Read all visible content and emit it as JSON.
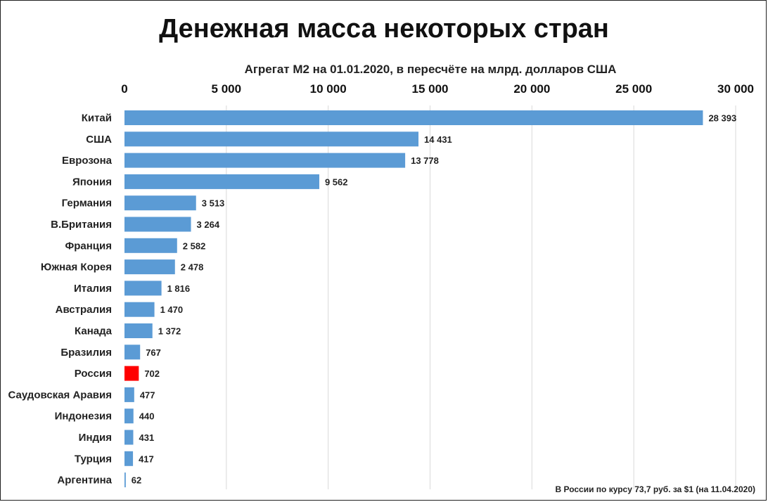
{
  "chart_data": {
    "type": "bar",
    "orientation": "horizontal",
    "title": "Денежная масса некоторых стран",
    "subtitle": "Агрегат М2 на 01.01.2020, в пересчёте на млрд. долларов США",
    "xlabel": "",
    "ylabel": "",
    "xlim": [
      0,
      30000
    ],
    "x_ticks": [
      0,
      5000,
      10000,
      15000,
      20000,
      25000,
      30000
    ],
    "x_tick_labels": [
      "0",
      "5 000",
      "10 000",
      "15 000",
      "20 000",
      "25 000",
      "30 000"
    ],
    "axis_position": "top",
    "grid": true,
    "categories": [
      "Китай",
      "США",
      "Еврозона",
      "Япония",
      "Германия",
      "В.Британия",
      "Франция",
      "Южная Корея",
      "Италия",
      "Австралия",
      "Канада",
      "Бразилия",
      "Россия",
      "Саудовская Аравия",
      "Индонезия",
      "Индия",
      "Турция",
      "Аргентина"
    ],
    "values": [
      28393,
      14431,
      13778,
      9562,
      3513,
      3264,
      2582,
      2478,
      1816,
      1470,
      1372,
      767,
      702,
      477,
      440,
      431,
      417,
      62
    ],
    "value_labels": [
      "28 393",
      "14 431",
      "13 778",
      "9 562",
      "3 513",
      "3 264",
      "2 582",
      "2 478",
      "1 816",
      "1 470",
      "1 372",
      "767",
      "702",
      "477",
      "440",
      "431",
      "417",
      "62"
    ],
    "highlight_index": 12,
    "colors": {
      "bar": "#5b9bd5",
      "highlight": "#ff0000",
      "grid": "#d9d9d9",
      "text": "#222222"
    },
    "footnote": "В России по курсу 73,7 руб. за $1 (на 11.04.2020)"
  }
}
